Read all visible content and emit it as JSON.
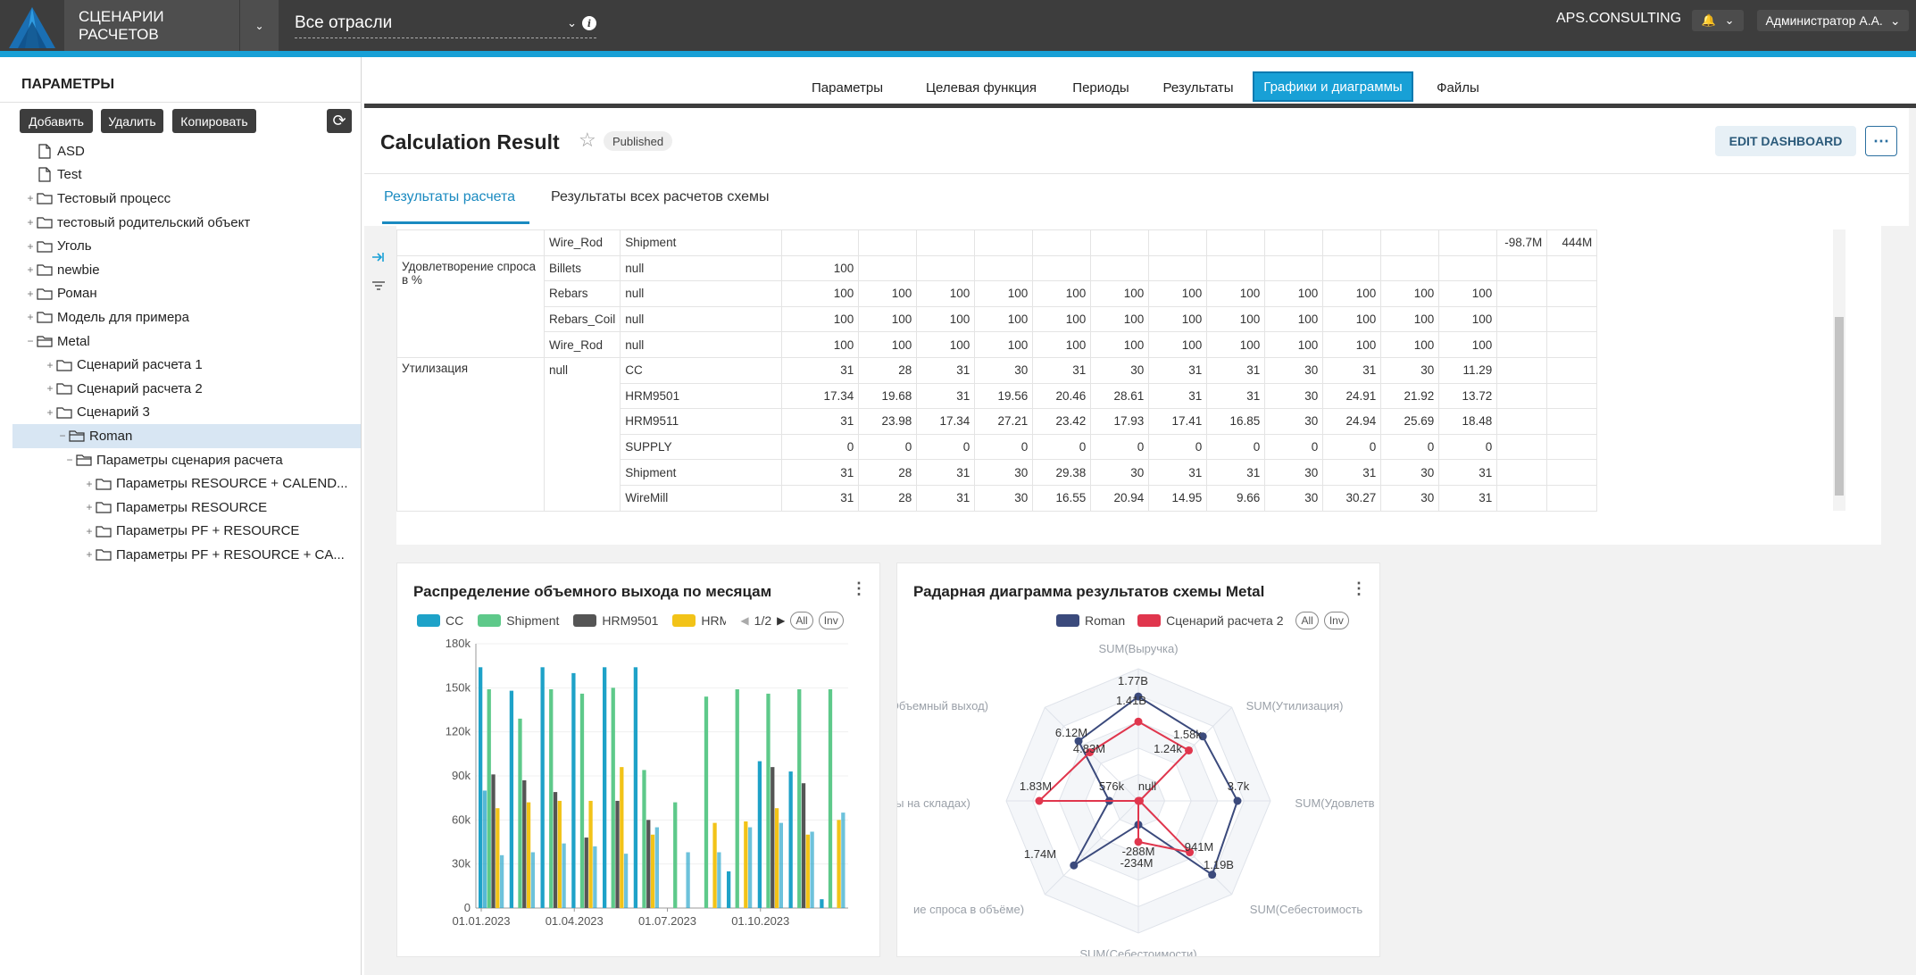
{
  "app": {
    "title": "СЦЕНАРИИ РАСЧЕТОВ",
    "industry": "Все отрасли",
    "brand": "APS.CONSULTING",
    "user": "Администратор А.А."
  },
  "sidebar": {
    "title": "ПАРАМЕТРЫ",
    "buttons": {
      "add": "Добавить",
      "delete": "Удалить",
      "copy": "Копировать"
    },
    "tree": [
      {
        "label": "ASD",
        "type": "file",
        "depth": 0
      },
      {
        "label": "Test",
        "type": "file",
        "depth": 0
      },
      {
        "label": "Тестовый процесс",
        "type": "folder",
        "depth": 0
      },
      {
        "label": "тестовый родительский объект",
        "type": "folder",
        "depth": 0
      },
      {
        "label": "Уголь",
        "type": "folder",
        "depth": 0
      },
      {
        "label": "newbie",
        "type": "folder",
        "depth": 0
      },
      {
        "label": "Роман",
        "type": "folder",
        "depth": 0
      },
      {
        "label": "Модель для примера",
        "type": "folder",
        "depth": 0
      },
      {
        "label": "Metal",
        "type": "folder-open",
        "depth": 0
      },
      {
        "label": "Сценарий расчета 1",
        "type": "folder",
        "depth": 1
      },
      {
        "label": "Сценарий расчета 2",
        "type": "folder",
        "depth": 1
      },
      {
        "label": "Сценарий 3",
        "type": "folder",
        "depth": 1
      },
      {
        "label": "Roman",
        "type": "folder-open",
        "depth": 1,
        "selected": true
      },
      {
        "label": "Параметры сценария расчета",
        "type": "folder-open",
        "depth": 2
      },
      {
        "label": "Параметры RESOURCE + CALEND...",
        "type": "folder",
        "depth": 3
      },
      {
        "label": "Параметры RESOURCE",
        "type": "folder",
        "depth": 3
      },
      {
        "label": "Параметры PF + RESOURCE",
        "type": "folder",
        "depth": 3
      },
      {
        "label": "Параметры PF + RESOURCE + CA...",
        "type": "folder",
        "depth": 3
      }
    ]
  },
  "tabs": [
    {
      "label": "Параметры"
    },
    {
      "label": "Целевая функция"
    },
    {
      "label": "Периоды"
    },
    {
      "label": "Результаты"
    },
    {
      "label": "Графики и диаграммы",
      "active": true
    },
    {
      "label": "Файлы"
    }
  ],
  "dashboard": {
    "title": "Calculation Result",
    "status": "Published",
    "edit_label": "EDIT DASHBOARD",
    "subtabs": [
      "Результаты расчета",
      "Результаты всех расчетов схемы"
    ]
  },
  "table": {
    "rows": [
      {
        "g": "",
        "s": "Wire_Rod",
        "t": "Shipment",
        "v": [
          "",
          "",
          "",
          "",
          "",
          "",
          "",
          "",
          "",
          "",
          "",
          "",
          "-98.7M",
          "444M"
        ]
      },
      {
        "g": "Удовлетворение спроса в %",
        "s": "Billets",
        "t": "null",
        "v": [
          "100",
          "",
          "",
          "",
          "",
          "",
          "",
          "",
          "",
          "",
          "",
          "",
          "",
          ""
        ]
      },
      {
        "g": "",
        "s": "Rebars",
        "t": "null",
        "v": [
          "100",
          "100",
          "100",
          "100",
          "100",
          "100",
          "100",
          "100",
          "100",
          "100",
          "100",
          "100",
          "",
          ""
        ]
      },
      {
        "g": "",
        "s": "Rebars_Coil",
        "t": "null",
        "v": [
          "100",
          "100",
          "100",
          "100",
          "100",
          "100",
          "100",
          "100",
          "100",
          "100",
          "100",
          "100",
          "",
          ""
        ]
      },
      {
        "g": "",
        "s": "Wire_Rod",
        "t": "null",
        "v": [
          "100",
          "100",
          "100",
          "100",
          "100",
          "100",
          "100",
          "100",
          "100",
          "100",
          "100",
          "100",
          "",
          ""
        ]
      },
      {
        "g": "Утилизация",
        "s": "null",
        "t": "CC",
        "v": [
          "31",
          "28",
          "31",
          "30",
          "31",
          "30",
          "31",
          "31",
          "30",
          "31",
          "30",
          "11.29",
          "",
          ""
        ]
      },
      {
        "g": "",
        "s": "",
        "t": "HRM9501",
        "v": [
          "17.34",
          "19.68",
          "31",
          "19.56",
          "20.46",
          "28.61",
          "31",
          "31",
          "30",
          "24.91",
          "21.92",
          "13.72",
          "",
          ""
        ]
      },
      {
        "g": "",
        "s": "",
        "t": "HRM9511",
        "v": [
          "31",
          "23.98",
          "17.34",
          "27.21",
          "23.42",
          "17.93",
          "17.41",
          "16.85",
          "30",
          "24.94",
          "25.69",
          "18.48",
          "",
          ""
        ]
      },
      {
        "g": "",
        "s": "",
        "t": "SUPPLY",
        "v": [
          "0",
          "0",
          "0",
          "0",
          "0",
          "0",
          "0",
          "0",
          "0",
          "0",
          "0",
          "0",
          "",
          ""
        ]
      },
      {
        "g": "",
        "s": "",
        "t": "Shipment",
        "v": [
          "31",
          "28",
          "31",
          "30",
          "29.38",
          "30",
          "31",
          "31",
          "30",
          "31",
          "30",
          "31",
          "",
          ""
        ]
      },
      {
        "g": "",
        "s": "",
        "t": "WireMill",
        "v": [
          "31",
          "28",
          "31",
          "30",
          "16.55",
          "20.94",
          "14.95",
          "9.66",
          "30",
          "30.27",
          "30",
          "31",
          "",
          ""
        ]
      }
    ]
  },
  "bar_card": {
    "title": "Распределение объемного выхода по месяцам",
    "legend_page": "1/2",
    "pill_all": "All",
    "pill_inv": "Inv"
  },
  "radar_card": {
    "title": "Радарная диаграмма результатов схемы Metal",
    "pill_all": "All",
    "pill_inv": "Inv"
  },
  "chart_data": [
    {
      "type": "bar",
      "title": "Распределение объемного выхода по месяцам",
      "categories": [
        "01.01.2023",
        "01.02.2023",
        "01.03.2023",
        "01.04.2023",
        "01.05.2023",
        "01.06.2023",
        "01.07.2023",
        "01.08.2023",
        "01.09.2023",
        "01.10.2023",
        "01.11.2023",
        "01.12.2023"
      ],
      "x_tick_labels": [
        "01.01.2023",
        "01.04.2023",
        "01.07.2023",
        "01.10.2023"
      ],
      "y_ticks": [
        "0",
        "30k",
        "60k",
        "90k",
        "120k",
        "150k",
        "180k"
      ],
      "ylim": [
        0,
        180000
      ],
      "legend": [
        "CC",
        "Shipment",
        "HRM9501",
        "HRM"
      ],
      "colors": [
        "#1ea2c8",
        "#5ec98a",
        "#555555",
        "#f2c318"
      ],
      "series": [
        {
          "name": "CC",
          "values": [
            164000,
            148000,
            164000,
            160000,
            164000,
            164000,
            0,
            0,
            25000,
            100000,
            93000,
            6000
          ]
        },
        {
          "name": "",
          "values": [
            80000,
            0,
            0,
            0,
            0,
            0,
            0,
            0,
            0,
            0,
            0,
            0
          ]
        },
        {
          "name": "Shipment",
          "values": [
            149000,
            129000,
            149000,
            146000,
            150000,
            94000,
            72000,
            144000,
            149000,
            146000,
            149000,
            149000
          ]
        },
        {
          "name": "HRM9501",
          "values": [
            91000,
            87000,
            79000,
            48000,
            73000,
            60000,
            0,
            0,
            0,
            96000,
            85000,
            0
          ]
        },
        {
          "name": "HRM",
          "values": [
            68000,
            72000,
            73000,
            73000,
            96000,
            50000,
            0,
            58000,
            59000,
            68000,
            50000,
            60000
          ]
        },
        {
          "name": "",
          "values": [
            36000,
            38000,
            44000,
            42000,
            37000,
            55000,
            38000,
            38000,
            55000,
            58000,
            52000,
            65000
          ]
        }
      ]
    },
    {
      "type": "radar",
      "title": "Радарная диаграмма результатов схемы Metal",
      "axes": [
        "SUM(Выручка)",
        "SUM(Утилизация)",
        "SUM(Удовлетв",
        "SUM(Себестоимость",
        "SUM(Себестоимости)",
        "ие спроса в объёме)",
        "ы на складах)",
        "И(Объемный выход)"
      ],
      "series": [
        {
          "name": "Roman",
          "color": "#3b4a7c",
          "labels": [
            "1.77B",
            "1.58k",
            "3.7k",
            "1.19B",
            "-288M",
            "1.74M",
            "576k",
            "6.12M"
          ]
        },
        {
          "name": "Сценарий расчета 2",
          "color": "#e0364d",
          "labels": [
            "1.41B",
            "1.24k",
            "null",
            "941M",
            "-234M",
            "",
            "1.83M",
            "4.83M"
          ]
        }
      ]
    }
  ]
}
